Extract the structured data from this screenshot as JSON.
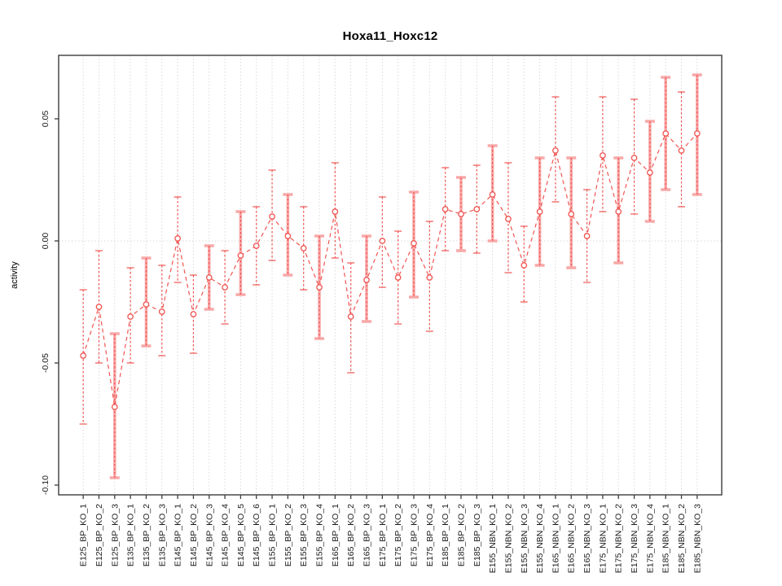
{
  "figure": {
    "background": "#ffffff"
  },
  "chart_data": {
    "type": "line",
    "subtype": "points-with-error-bars",
    "title": "Hoxa11_Hoxc12",
    "xlabel": "",
    "ylabel": "activity",
    "ylim": [
      -0.104,
      0.076
    ],
    "yticks": [
      0.05,
      0.0,
      -0.05,
      -0.1
    ],
    "ytick_labels": [
      "0.05",
      "0.00",
      "-0.05",
      "-0.10"
    ],
    "grid": "vertical dotted gridline at every category; dotted horizontal line at y=0",
    "legend": "none",
    "marker": "open-circle",
    "line_style": "dashed",
    "categories": [
      "E125_BP_KO_1",
      "E125_BP_KO_2",
      "E125_BP_KO_3",
      "E135_BP_KO_1",
      "E135_BP_KO_2",
      "E135_BP_KO_3",
      "E145_BP_KO_1",
      "E145_BP_KO_2",
      "E145_BP_KO_3",
      "E145_BP_KO_4",
      "E145_BP_KO_5",
      "E145_BP_KO_6",
      "E155_BP_KO_1",
      "E155_BP_KO_2",
      "E155_BP_KO_3",
      "E155_BP_KO_4",
      "E165_BP_KO_1",
      "E165_BP_KO_2",
      "E165_BP_KO_3",
      "E175_BP_KO_1",
      "E175_BP_KO_2",
      "E175_BP_KO_3",
      "E175_BP_KO_4",
      "E185_BP_KO_1",
      "E185_BP_KO_2",
      "E185_BP_KO_3",
      "E155_NBN_KO_1",
      "E155_NBN_KO_2",
      "E155_NBN_KO_3",
      "E155_NBN_KO_4",
      "E165_NBN_KO_1",
      "E165_NBN_KO_2",
      "E165_NBN_KO_3",
      "E175_NBN_KO_1",
      "E175_NBN_KO_2",
      "E175_NBN_KO_3",
      "E175_NBN_KO_4",
      "E185_NBN_KO_1",
      "E185_NBN_KO_2",
      "E185_NBN_KO_3"
    ],
    "series": [
      {
        "name": "activity",
        "values": [
          -0.047,
          -0.027,
          -0.068,
          -0.031,
          -0.026,
          -0.029,
          0.001,
          -0.03,
          -0.015,
          -0.019,
          -0.006,
          -0.002,
          0.01,
          0.002,
          -0.003,
          -0.019,
          0.012,
          -0.031,
          -0.016,
          0.0,
          -0.015,
          -0.001,
          -0.015,
          0.013,
          0.011,
          0.013,
          0.019,
          0.009,
          -0.01,
          0.012,
          0.037,
          0.011,
          0.002,
          0.035,
          0.012,
          0.034,
          0.028,
          0.044,
          0.037,
          0.044
        ],
        "ci_low": [
          -0.075,
          -0.05,
          -0.097,
          -0.05,
          -0.043,
          -0.047,
          -0.017,
          -0.046,
          -0.028,
          -0.034,
          -0.022,
          -0.018,
          -0.008,
          -0.014,
          -0.02,
          -0.04,
          -0.007,
          -0.054,
          -0.033,
          -0.019,
          -0.034,
          -0.023,
          -0.037,
          -0.004,
          -0.004,
          -0.005,
          0.0,
          -0.013,
          -0.025,
          -0.01,
          0.016,
          -0.011,
          -0.017,
          0.012,
          -0.009,
          0.011,
          0.008,
          0.021,
          0.014,
          0.019
        ],
        "ci_high": [
          -0.02,
          -0.004,
          -0.038,
          -0.011,
          -0.007,
          -0.01,
          0.018,
          -0.014,
          -0.002,
          -0.004,
          0.012,
          0.014,
          0.029,
          0.019,
          0.014,
          0.002,
          0.032,
          -0.009,
          0.002,
          0.018,
          0.004,
          0.02,
          0.008,
          0.03,
          0.026,
          0.031,
          0.039,
          0.032,
          0.006,
          0.034,
          0.059,
          0.034,
          0.021,
          0.059,
          0.034,
          0.058,
          0.049,
          0.067,
          0.061,
          0.068
        ],
        "bar_style": [
          "thin",
          "thin",
          "thick",
          "thin",
          "thick",
          "thin",
          "thin",
          "thin",
          "thick",
          "thin",
          "thick",
          "thin",
          "thin",
          "thick",
          "thin",
          "thick",
          "thin",
          "thin",
          "thick",
          "thin",
          "thin",
          "thick",
          "thin",
          "thin",
          "thick",
          "thin",
          "thick",
          "thin",
          "thin",
          "thick",
          "thin",
          "thick",
          "thin",
          "thin",
          "thick",
          "thin",
          "thick",
          "thick",
          "thin",
          "thick"
        ]
      }
    ],
    "colors": {
      "point": "#f05552",
      "line": "#f05552",
      "error_bar_thin": "#f05552",
      "error_bar_thick": "#f8a8a8",
      "gridline": "#d9d9d9",
      "zero_line": "#d9d9d9",
      "axis": "#3c3c3c",
      "tick_label": "#1a1a1a"
    }
  }
}
